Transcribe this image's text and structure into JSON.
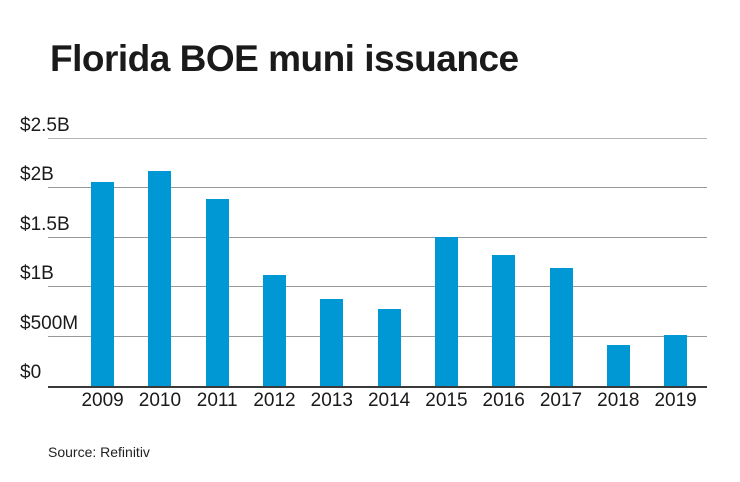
{
  "title": "Florida BOE muni issuance",
  "source": "Source: Refinitiv",
  "colors": {
    "bar": "#0098d4",
    "grid": "#999999",
    "grid_top": "#b5b5b5",
    "axis": "#3a3a3a",
    "text": "#1a1a1a",
    "background": "#ffffff"
  },
  "chart_data": {
    "type": "bar",
    "title": "Florida BOE muni issuance",
    "categories": [
      "2009",
      "2010",
      "2011",
      "2012",
      "2013",
      "2014",
      "2015",
      "2016",
      "2017",
      "2018",
      "2019"
    ],
    "values": [
      2.06,
      2.18,
      1.89,
      1.12,
      0.88,
      0.78,
      1.51,
      1.33,
      1.19,
      0.41,
      0.52
    ],
    "unit": "billions of USD",
    "xlabel": "",
    "ylabel": "",
    "ylim": [
      0,
      2.5
    ],
    "yticks": [
      {
        "value": 0,
        "label": "$0"
      },
      {
        "value": 0.5,
        "label": "$500M"
      },
      {
        "value": 1.0,
        "label": "$1B"
      },
      {
        "value": 1.5,
        "label": "$1.5B"
      },
      {
        "value": 2.0,
        "label": "$2B"
      },
      {
        "value": 2.5,
        "label": "$2.5B"
      }
    ],
    "grid": true,
    "legend": false,
    "bar_color": "#0098d4",
    "source": "Source: Refinitiv"
  }
}
